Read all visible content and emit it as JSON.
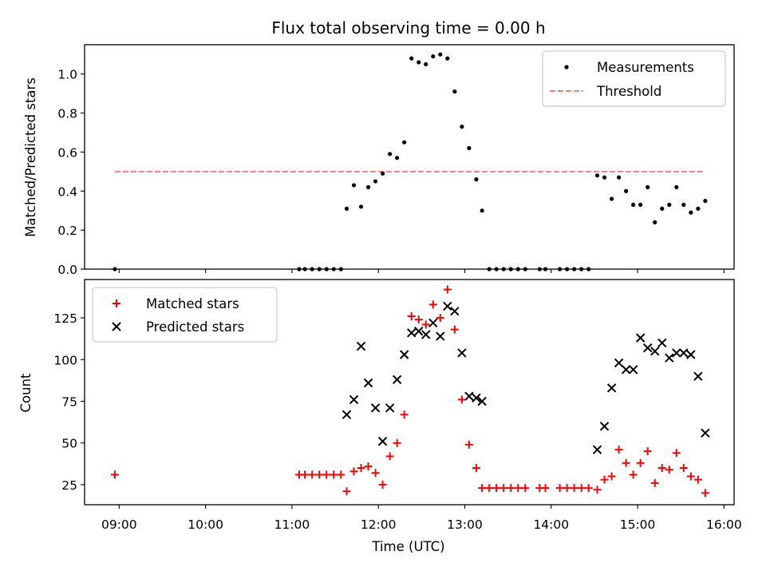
{
  "chart_data": [
    {
      "type": "scatter",
      "title": "Flux total observing time = 0.00 h",
      "ylabel": "Matched/Predicted stars",
      "ylim": [
        0,
        1.15
      ],
      "yticks": [
        "0.0",
        "0.2",
        "0.4",
        "0.6",
        "0.8",
        "1.0"
      ],
      "legend": "top-right",
      "series": [
        {
          "name": "Measurements",
          "color": "#000000",
          "marker": "dot",
          "points": [
            [
              "08:57",
              0.0
            ],
            [
              "11:05",
              0.0
            ],
            [
              "11:09",
              0.0
            ],
            [
              "11:14",
              0.0
            ],
            [
              "11:19",
              0.0
            ],
            [
              "11:24",
              0.0
            ],
            [
              "11:29",
              0.0
            ],
            [
              "11:34",
              0.0
            ],
            [
              "11:38",
              0.31
            ],
            [
              "11:43",
              0.43
            ],
            [
              "11:48",
              0.32
            ],
            [
              "11:53",
              0.42
            ],
            [
              "11:58",
              0.45
            ],
            [
              "12:03",
              0.49
            ],
            [
              "12:08",
              0.59
            ],
            [
              "12:13",
              0.57
            ],
            [
              "12:18",
              0.65
            ],
            [
              "12:23",
              1.08
            ],
            [
              "12:28",
              1.06
            ],
            [
              "12:33",
              1.05
            ],
            [
              "12:38",
              1.09
            ],
            [
              "12:43",
              1.1
            ],
            [
              "12:48",
              1.08
            ],
            [
              "12:53",
              0.91
            ],
            [
              "12:58",
              0.73
            ],
            [
              "13:03",
              0.62
            ],
            [
              "13:08",
              0.46
            ],
            [
              "13:12",
              0.3
            ],
            [
              "13:17",
              0.0
            ],
            [
              "13:22",
              0.0
            ],
            [
              "13:27",
              0.0
            ],
            [
              "13:32",
              0.0
            ],
            [
              "13:37",
              0.0
            ],
            [
              "13:42",
              0.0
            ],
            [
              "13:52",
              0.0
            ],
            [
              "13:56",
              0.0
            ],
            [
              "14:06",
              0.0
            ],
            [
              "14:11",
              0.0
            ],
            [
              "14:16",
              0.0
            ],
            [
              "14:21",
              0.0
            ],
            [
              "14:26",
              0.0
            ],
            [
              "14:32",
              0.48
            ],
            [
              "14:37",
              0.47
            ],
            [
              "14:42",
              0.36
            ],
            [
              "14:47",
              0.47
            ],
            [
              "14:52",
              0.4
            ],
            [
              "14:57",
              0.33
            ],
            [
              "15:02",
              0.33
            ],
            [
              "15:07",
              0.42
            ],
            [
              "15:12",
              0.24
            ],
            [
              "15:17",
              0.31
            ],
            [
              "15:22",
              0.33
            ],
            [
              "15:27",
              0.42
            ],
            [
              "15:32",
              0.33
            ],
            [
              "15:37",
              0.29
            ],
            [
              "15:42",
              0.31
            ],
            [
              "15:47",
              0.35
            ]
          ]
        },
        {
          "name": "Threshold",
          "color": "#ff7f7f",
          "style": "dashed",
          "points": [
            [
              "08:57",
              0.5
            ],
            [
              "15:47",
              0.5
            ]
          ]
        }
      ]
    },
    {
      "type": "scatter",
      "xlabel": "Time (UTC)",
      "ylabel": "Count",
      "ylim": [
        13,
        148
      ],
      "yticks": [
        "25",
        "50",
        "75",
        "100",
        "125"
      ],
      "xlim": [
        "08:36",
        "16:07"
      ],
      "xticks": [
        "09:00",
        "10:00",
        "11:00",
        "12:00",
        "13:00",
        "14:00",
        "15:00",
        "16:00"
      ],
      "legend": "top-left",
      "series": [
        {
          "name": "Matched stars",
          "color": "#ff0000",
          "marker": "plus",
          "points": [
            [
              "08:57",
              31
            ],
            [
              "11:05",
              31
            ],
            [
              "11:09",
              31
            ],
            [
              "11:14",
              31
            ],
            [
              "11:19",
              31
            ],
            [
              "11:24",
              31
            ],
            [
              "11:29",
              31
            ],
            [
              "11:34",
              31
            ],
            [
              "11:38",
              21
            ],
            [
              "11:43",
              33
            ],
            [
              "11:48",
              35
            ],
            [
              "11:53",
              36
            ],
            [
              "11:58",
              32
            ],
            [
              "12:03",
              25
            ],
            [
              "12:08",
              42
            ],
            [
              "12:13",
              50
            ],
            [
              "12:18",
              67
            ],
            [
              "12:23",
              126
            ],
            [
              "12:28",
              124
            ],
            [
              "12:33",
              121
            ],
            [
              "12:38",
              133
            ],
            [
              "12:43",
              125
            ],
            [
              "12:48",
              142
            ],
            [
              "12:53",
              118
            ],
            [
              "12:58",
              76
            ],
            [
              "13:03",
              49
            ],
            [
              "13:08",
              35
            ],
            [
              "13:12",
              23
            ],
            [
              "13:17",
              23
            ],
            [
              "13:22",
              23
            ],
            [
              "13:27",
              23
            ],
            [
              "13:32",
              23
            ],
            [
              "13:37",
              23
            ],
            [
              "13:42",
              23
            ],
            [
              "13:52",
              23
            ],
            [
              "13:56",
              23
            ],
            [
              "14:06",
              23
            ],
            [
              "14:11",
              23
            ],
            [
              "14:16",
              23
            ],
            [
              "14:21",
              23
            ],
            [
              "14:26",
              23
            ],
            [
              "14:32",
              22
            ],
            [
              "14:37",
              28
            ],
            [
              "14:42",
              30
            ],
            [
              "14:47",
              46
            ],
            [
              "14:52",
              38
            ],
            [
              "14:57",
              31
            ],
            [
              "15:02",
              38
            ],
            [
              "15:07",
              45
            ],
            [
              "15:12",
              26
            ],
            [
              "15:17",
              35
            ],
            [
              "15:22",
              34
            ],
            [
              "15:27",
              44
            ],
            [
              "15:32",
              35
            ],
            [
              "15:37",
              30
            ],
            [
              "15:42",
              28
            ],
            [
              "15:47",
              20
            ]
          ]
        },
        {
          "name": "Predicted stars",
          "color": "#000000",
          "marker": "x",
          "points": [
            [
              "11:38",
              67
            ],
            [
              "11:43",
              76
            ],
            [
              "11:48",
              108
            ],
            [
              "11:53",
              86
            ],
            [
              "11:58",
              71
            ],
            [
              "12:03",
              51
            ],
            [
              "12:08",
              71
            ],
            [
              "12:13",
              88
            ],
            [
              "12:18",
              103
            ],
            [
              "12:23",
              116
            ],
            [
              "12:28",
              117
            ],
            [
              "12:33",
              115
            ],
            [
              "12:38",
              122
            ],
            [
              "12:43",
              114
            ],
            [
              "12:48",
              132
            ],
            [
              "12:53",
              129
            ],
            [
              "12:58",
              104
            ],
            [
              "13:03",
              78
            ],
            [
              "13:08",
              77
            ],
            [
              "13:12",
              75
            ],
            [
              "14:32",
              46
            ],
            [
              "14:37",
              60
            ],
            [
              "14:42",
              83
            ],
            [
              "14:47",
              98
            ],
            [
              "14:52",
              94
            ],
            [
              "14:57",
              94
            ],
            [
              "15:02",
              113
            ],
            [
              "15:07",
              107
            ],
            [
              "15:12",
              105
            ],
            [
              "15:17",
              110
            ],
            [
              "15:22",
              101
            ],
            [
              "15:27",
              104
            ],
            [
              "15:32",
              104
            ],
            [
              "15:37",
              103
            ],
            [
              "15:42",
              90
            ],
            [
              "15:47",
              56
            ]
          ]
        }
      ]
    }
  ]
}
